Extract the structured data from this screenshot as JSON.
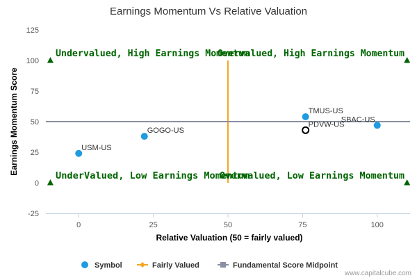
{
  "chart_data": {
    "type": "scatter",
    "title": "Earnings Momentum Vs Relative Valuation",
    "xlabel": "Relative Valuation (50 = fairly valued)",
    "ylabel": "Earnings Momentum Score",
    "xlim": [
      -11,
      111
    ],
    "ylim": [
      -25,
      125
    ],
    "xticks": [
      0,
      25,
      50,
      75,
      100
    ],
    "yticks": [
      -25,
      0,
      25,
      50,
      75,
      100,
      125
    ],
    "grid": false,
    "legend_position": "bottom",
    "points": [
      {
        "label": "USM-US",
        "x": 0,
        "y": 24,
        "style": "filled"
      },
      {
        "label": "GOGO-US",
        "x": 22,
        "y": 38,
        "style": "filled"
      },
      {
        "label": "TMUS-US",
        "x": 76,
        "y": 54,
        "style": "filled"
      },
      {
        "label": "SBAC-US",
        "x": 100,
        "y": 47,
        "style": "filled"
      },
      {
        "label": "PDVW-US",
        "x": 76,
        "y": 43,
        "style": "hollow"
      }
    ],
    "fairly_value_x": 50,
    "midpoint_y": 50,
    "quadrant_labels": [
      {
        "text": "Undervalued, High Earnings Momentum",
        "anchor_x": -11,
        "anchor_y": 100
      },
      {
        "text": "Overvalued, High Earnings Momentum",
        "anchor_x": 111,
        "anchor_y": 100
      },
      {
        "text": "UnderValued, Low Earnings Momentum",
        "anchor_x": -11,
        "anchor_y": 0
      },
      {
        "text": "Overvalued, Low Earnings Momentum",
        "anchor_x": 111,
        "anchor_y": 0
      }
    ],
    "legend": [
      {
        "name": "Symbol",
        "color": "#1f9be0"
      },
      {
        "name": "Fairly Valued",
        "color": "#f5a623"
      },
      {
        "name": "Fundamental Score Midpoint",
        "color": "#8a8fa3"
      }
    ],
    "colors": {
      "point": "#1f9be0",
      "fair_line": "#f5a623",
      "mid_line": "#8a8fa3",
      "quadrant_text": "#006400",
      "triangle": "#006400"
    }
  },
  "credit": "www.capitalcube.com"
}
